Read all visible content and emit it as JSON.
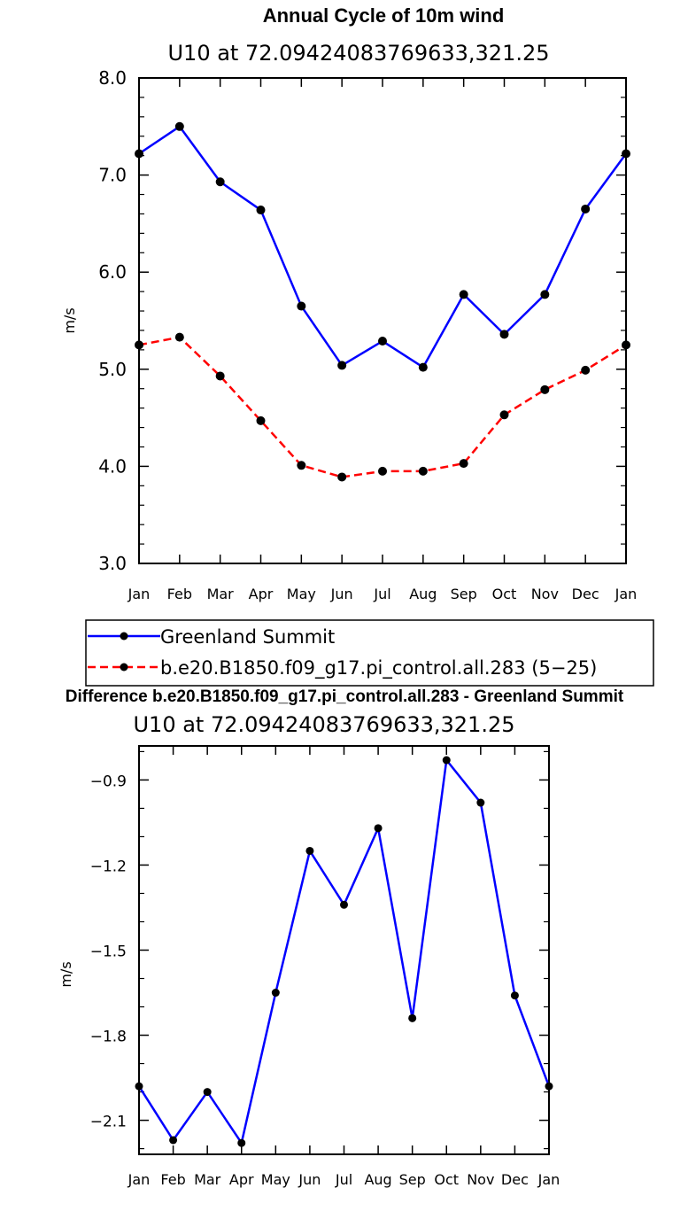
{
  "chart_data": [
    {
      "type": "line",
      "title": "Annual Cycle of 10m wind",
      "subtitle": "U10 at 72.09424083769633,321.25",
      "xlabel": "",
      "ylabel": "m/s",
      "ylim": [
        3.0,
        8.0
      ],
      "yticks": [
        3.0,
        4.0,
        5.0,
        6.0,
        7.0,
        8.0
      ],
      "ytick_labels": [
        "3.0",
        "4.0",
        "5.0",
        "6.0",
        "7.0",
        "8.0"
      ],
      "categories": [
        "Jan",
        "Feb",
        "Mar",
        "Apr",
        "May",
        "Jun",
        "Jul",
        "Aug",
        "Sep",
        "Oct",
        "Nov",
        "Dec",
        "Jan"
      ],
      "grid": false,
      "legend_position": "below",
      "series": [
        {
          "name": "Greenland Summit",
          "color": "#0000ff",
          "style": "solid",
          "marker": "circle",
          "values": [
            7.22,
            7.5,
            6.93,
            6.64,
            5.65,
            5.04,
            5.29,
            5.02,
            5.77,
            5.36,
            5.77,
            6.65,
            7.22
          ]
        },
        {
          "name": "b.e20.B1850.f09_g17.pi_control.all.283 (5−25)",
          "color": "#ff0000",
          "style": "dashed",
          "marker": "circle",
          "values": [
            5.25,
            5.33,
            4.93,
            4.47,
            4.01,
            3.89,
            3.95,
            3.95,
            4.03,
            4.53,
            4.79,
            4.99,
            5.25
          ]
        }
      ]
    },
    {
      "type": "line",
      "title": "Difference b.e20.B1850.f09_g17.pi_control.all.283 - Greenland Summit",
      "subtitle": "U10 at 72.09424083769633,321.25",
      "xlabel": "",
      "ylabel": "m/s",
      "ylim": [
        -2.22,
        -0.78
      ],
      "yticks": [
        -2.1,
        -1.8,
        -1.5,
        -1.2,
        -0.9
      ],
      "ytick_labels": [
        "−2.1",
        "−1.8",
        "−1.5",
        "−1.2",
        "−0.9"
      ],
      "categories": [
        "Jan",
        "Feb",
        "Mar",
        "Apr",
        "May",
        "Jun",
        "Jul",
        "Aug",
        "Sep",
        "Oct",
        "Nov",
        "Dec",
        "Jan"
      ],
      "grid": false,
      "series": [
        {
          "color": "#0000ff",
          "style": "solid",
          "marker": "circle",
          "values": [
            -1.98,
            -2.17,
            -2.0,
            -2.18,
            -1.65,
            -1.15,
            -1.34,
            -1.07,
            -1.74,
            -0.83,
            -0.98,
            -1.66,
            -1.98
          ]
        }
      ]
    }
  ]
}
